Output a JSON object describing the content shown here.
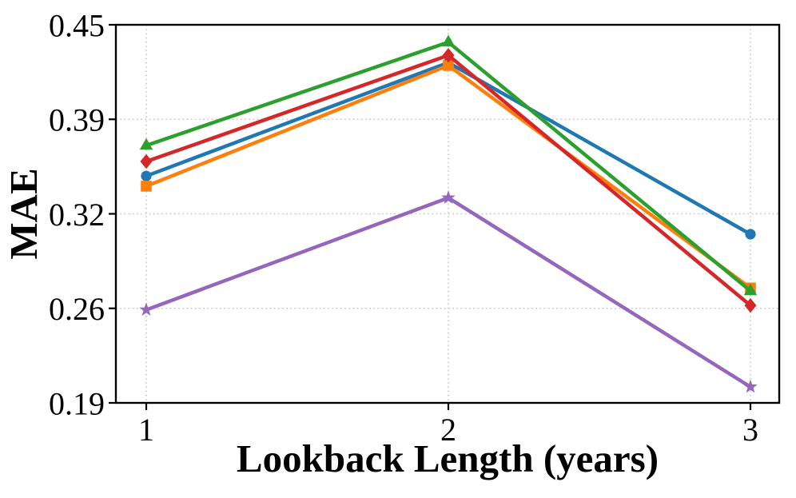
{
  "figure": {
    "background": "#ffffff",
    "axis_color": "#000000"
  },
  "chart_data": {
    "type": "line",
    "title": "",
    "xlabel": "Lookback Length (years)",
    "ylabel": "MAE",
    "x": [
      1,
      2,
      3
    ],
    "xtick_labels": [
      "1",
      "2",
      "3"
    ],
    "yticks": [
      {
        "value": 0.19,
        "label": "0.19"
      },
      {
        "value": 0.255,
        "label": "0.26"
      },
      {
        "value": 0.32,
        "label": "0.32"
      },
      {
        "value": 0.385,
        "label": "0.39"
      },
      {
        "value": 0.45,
        "label": "0.45"
      }
    ],
    "ylim": [
      0.19,
      0.45
    ],
    "grid": {
      "show": true,
      "style": "dotted",
      "color": "#c9c9c9"
    },
    "legend": "none",
    "series": [
      {
        "name": "blue-circle",
        "marker": "circle",
        "color": "#1f77b4",
        "values": [
          0.346,
          0.424,
          0.306
        ]
      },
      {
        "name": "orange-square",
        "marker": "square",
        "color": "#ff7f0e",
        "values": [
          0.339,
          0.422,
          0.269
        ]
      },
      {
        "name": "green-triangle",
        "marker": "triangle",
        "color": "#2ca02c",
        "values": [
          0.367,
          0.438,
          0.267
        ]
      },
      {
        "name": "red-diamond",
        "marker": "diamond",
        "color": "#d62728",
        "values": [
          0.356,
          0.429,
          0.257
        ]
      },
      {
        "name": "purple-star",
        "marker": "star",
        "color": "#9467bd",
        "values": [
          0.254,
          0.331,
          0.201
        ]
      }
    ]
  }
}
